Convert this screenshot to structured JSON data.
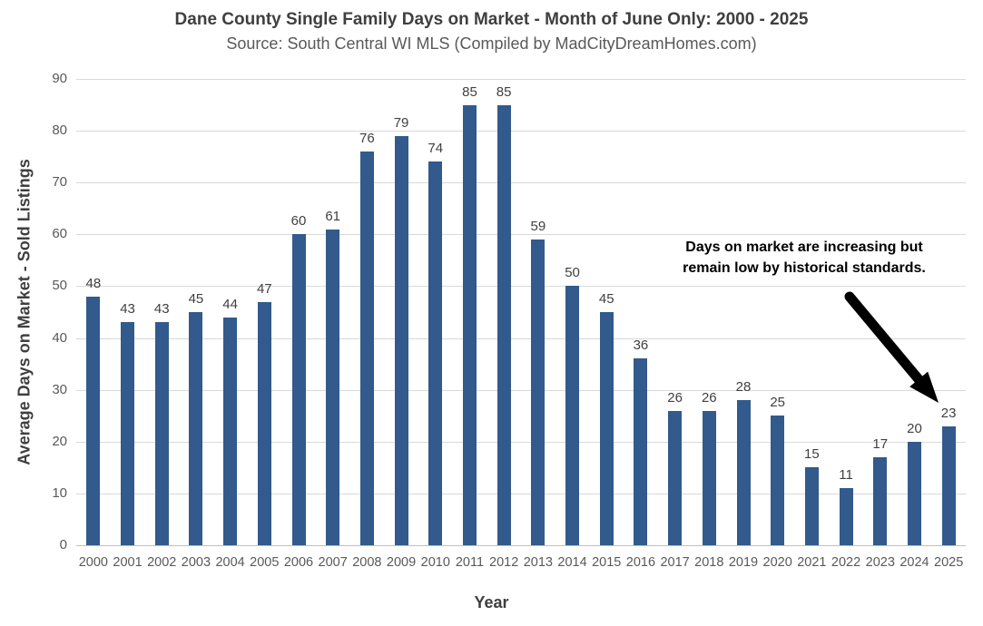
{
  "chart_data": {
    "type": "bar",
    "title": "Dane County Single Family Days on Market - Month of June Only: 2000 - 2025",
    "subtitle": "Source: South Central WI MLS (Compiled by MadCityDreamHomes.com)",
    "xlabel": "Year",
    "ylabel": "Average Days on Market - Sold Listings",
    "categories": [
      "2000",
      "2001",
      "2002",
      "2003",
      "2004",
      "2005",
      "2006",
      "2007",
      "2008",
      "2009",
      "2010",
      "2011",
      "2012",
      "2013",
      "2014",
      "2015",
      "2016",
      "2017",
      "2018",
      "2019",
      "2020",
      "2021",
      "2022",
      "2023",
      "2024",
      "2025"
    ],
    "values": [
      48,
      43,
      43,
      45,
      44,
      47,
      60,
      61,
      76,
      79,
      74,
      85,
      85,
      59,
      50,
      45,
      36,
      26,
      26,
      28,
      25,
      15,
      11,
      17,
      20,
      23
    ],
    "ylim": [
      0,
      90
    ],
    "yticks": [
      0,
      10,
      20,
      30,
      40,
      50,
      60,
      70,
      80,
      90
    ],
    "grid": true,
    "legend": "none",
    "data_labels": true,
    "annotation": {
      "line1": "Days on market are increasing but",
      "line2": "remain low by historical standards.",
      "arrow_points_to": "2025"
    },
    "colors": {
      "bar": "#325A8C",
      "grid": "#D9D9D9",
      "baseline": "#C0C0C0",
      "title": "#3F3F3F",
      "subtitle": "#595959",
      "tick_label": "#595959",
      "data_label": "#404040",
      "annotation_text": "#000000",
      "arrow": "#000000",
      "background": "#FFFFFF"
    }
  }
}
